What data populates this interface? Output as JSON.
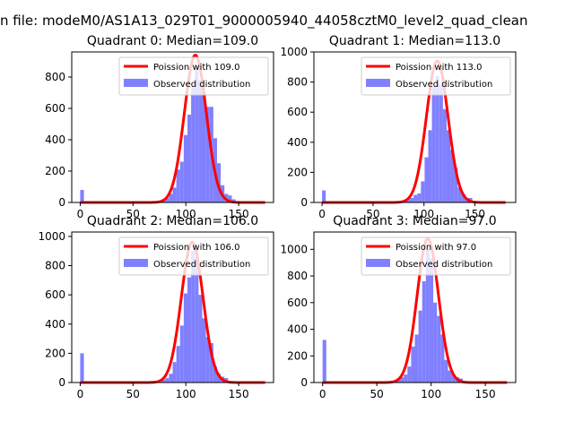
{
  "figure": {
    "suptitle": "n file: modeM0/AS1A13_029T01_9000005940_44058cztM0_level2_quad_clean"
  },
  "legend": {
    "observed_label": "Observed distribution"
  },
  "colors": {
    "histogram": "#8080ff",
    "poisson": "#ff0000"
  },
  "chart_data": [
    {
      "type": "bar",
      "title": "Quadrant 0: Median=109.0",
      "xlim": [
        -8,
        183
      ],
      "ylim": [
        0,
        960
      ],
      "xticks": [
        0,
        50,
        100,
        150
      ],
      "yticks": [
        0,
        200,
        400,
        600,
        800
      ],
      "series": [
        {
          "name": "Poission with 109.0",
          "kind": "line",
          "median": 109.0,
          "x_range": [
            0,
            175
          ],
          "peak": 940
        },
        {
          "name": "Observed distribution",
          "kind": "histogram",
          "bin_width": 3.5,
          "bins": [
            [
              0,
              80
            ],
            [
              3.5,
              8
            ],
            [
              77,
              20
            ],
            [
              80.5,
              28
            ],
            [
              84,
              55
            ],
            [
              87.5,
              95
            ],
            [
              91,
              210
            ],
            [
              94.5,
              260
            ],
            [
              98,
              430
            ],
            [
              101.5,
              560
            ],
            [
              105,
              740
            ],
            [
              108.5,
              870
            ],
            [
              112,
              780
            ],
            [
              115.5,
              700
            ],
            [
              119,
              610
            ],
            [
              122.5,
              610
            ],
            [
              126,
              410
            ],
            [
              129.5,
              250
            ],
            [
              133,
              110
            ],
            [
              136.5,
              55
            ],
            [
              140,
              45
            ],
            [
              143.5,
              20
            ]
          ]
        }
      ]
    },
    {
      "type": "bar",
      "title": "Quadrant 1: Median=113.0",
      "xlim": [
        -8,
        190
      ],
      "ylim": [
        0,
        1000
      ],
      "xticks": [
        0,
        50,
        100,
        150
      ],
      "yticks": [
        0,
        200,
        400,
        600,
        800,
        1000
      ],
      "series": [
        {
          "name": "Poission with 113.0",
          "kind": "line",
          "median": 113.0,
          "x_range": [
            0,
            180
          ],
          "peak": 940
        },
        {
          "name": "Observed distribution",
          "kind": "histogram",
          "bin_width": 3.6,
          "bins": [
            [
              0,
              80
            ],
            [
              3.6,
              8
            ],
            [
              79,
              15
            ],
            [
              82.6,
              20
            ],
            [
              86.2,
              30
            ],
            [
              89.8,
              50
            ],
            [
              93.4,
              60
            ],
            [
              97,
              140
            ],
            [
              100.6,
              300
            ],
            [
              104.2,
              480
            ],
            [
              107.8,
              770
            ],
            [
              111.4,
              840
            ],
            [
              115,
              780
            ],
            [
              118.6,
              620
            ],
            [
              122.2,
              480
            ],
            [
              125.8,
              350
            ],
            [
              129.4,
              230
            ],
            [
              133,
              100
            ],
            [
              136.6,
              60
            ],
            [
              140.2,
              30
            ],
            [
              143.8,
              30
            ]
          ]
        }
      ]
    },
    {
      "type": "bar",
      "title": "Quadrant 2: Median=106.0",
      "xlim": [
        -8,
        183
      ],
      "ylim": [
        0,
        1030
      ],
      "xticks": [
        0,
        50,
        100,
        150
      ],
      "yticks": [
        0,
        200,
        400,
        600,
        800,
        1000
      ],
      "series": [
        {
          "name": "Poission with 106.0",
          "kind": "line",
          "median": 106.0,
          "x_range": [
            0,
            175
          ],
          "peak": 960
        },
        {
          "name": "Observed distribution",
          "kind": "histogram",
          "bin_width": 3.5,
          "bins": [
            [
              0,
              200
            ],
            [
              3.5,
              8
            ],
            [
              77,
              20
            ],
            [
              80.5,
              30
            ],
            [
              84,
              60
            ],
            [
              87.5,
              140
            ],
            [
              91,
              250
            ],
            [
              94.5,
              390
            ],
            [
              98,
              610
            ],
            [
              101.5,
              720
            ],
            [
              105,
              900
            ],
            [
              108.5,
              850
            ],
            [
              112,
              600
            ],
            [
              115.5,
              440
            ],
            [
              119,
              310
            ],
            [
              122.5,
              270
            ],
            [
              126,
              110
            ],
            [
              129.5,
              60
            ],
            [
              133,
              40
            ],
            [
              136.5,
              30
            ]
          ]
        }
      ]
    },
    {
      "type": "bar",
      "title": "Quadrant 3: Median=97.0",
      "xlim": [
        -8,
        178
      ],
      "ylim": [
        0,
        1130
      ],
      "xticks": [
        0,
        50,
        100,
        150
      ],
      "yticks": [
        0,
        200,
        400,
        600,
        800,
        1000
      ],
      "series": [
        {
          "name": "Poission with 97.0",
          "kind": "line",
          "median": 97.0,
          "x_range": [
            0,
            170
          ],
          "peak": 1080
        },
        {
          "name": "Observed distribution",
          "kind": "histogram",
          "bin_width": 3.4,
          "bins": [
            [
              0,
              320
            ],
            [
              3.4,
              8
            ],
            [
              68,
              30
            ],
            [
              71.4,
              40
            ],
            [
              74.8,
              60
            ],
            [
              78.2,
              120
            ],
            [
              81.6,
              270
            ],
            [
              85,
              360
            ],
            [
              88.4,
              540
            ],
            [
              91.8,
              760
            ],
            [
              95.2,
              1000
            ],
            [
              98.6,
              930
            ],
            [
              102,
              600
            ],
            [
              105.4,
              500
            ],
            [
              108.8,
              360
            ],
            [
              112.2,
              170
            ],
            [
              115.6,
              90
            ],
            [
              119,
              60
            ],
            [
              122.4,
              40
            ],
            [
              125.8,
              30
            ]
          ]
        }
      ]
    }
  ]
}
